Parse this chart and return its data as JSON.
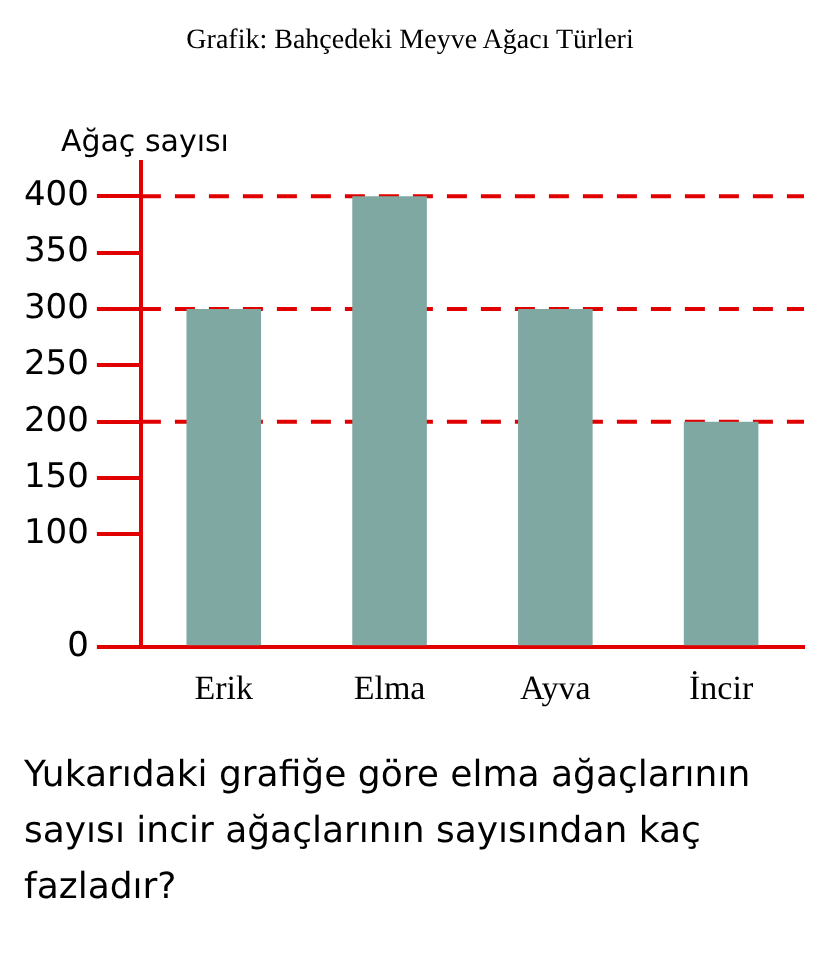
{
  "chart_data": {
    "type": "bar",
    "title": "Grafik: Bahçedeki Meyve Ağacı Türleri",
    "ylabel": "Ağaç sayısı",
    "categories": [
      "Erik",
      "Elma",
      "Ayva",
      "İncir"
    ],
    "values": [
      300,
      400,
      300,
      200
    ],
    "color": "#80a8a2",
    "ylim": [
      0,
      430
    ],
    "yticks": [
      0,
      100,
      150,
      200,
      250,
      300,
      350,
      400
    ],
    "grid": false,
    "ref_lines": [
      {
        "axis": "y",
        "value": 400,
        "color": "#e00000",
        "line_style": "dashed"
      },
      {
        "axis": "y",
        "value": 300,
        "color": "#e00000",
        "line_style": "dashed"
      },
      {
        "axis": "y",
        "value": 200,
        "color": "#e00000",
        "line_style": "dashed"
      }
    ],
    "annotations": [
      "Yukarıdaki grafiğe göre elma ağaçlarının sayısı incir ağaçlarının sayısından kaç fazladır?"
    ]
  }
}
